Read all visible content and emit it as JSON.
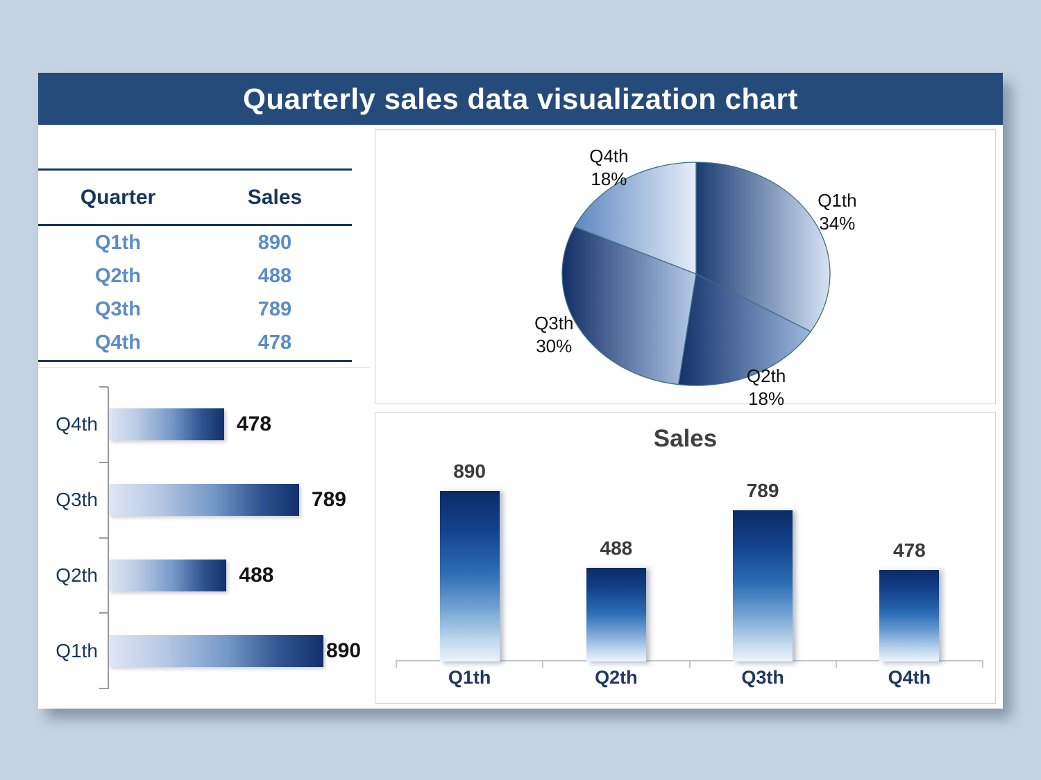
{
  "title": "Quarterly sales data visualization chart",
  "table": {
    "headers": [
      "Quarter",
      "Sales"
    ],
    "rows": [
      {
        "quarter": "Q1th",
        "sales": "890"
      },
      {
        "quarter": "Q2th",
        "sales": "488"
      },
      {
        "quarter": "Q3th",
        "sales": "789"
      },
      {
        "quarter": "Q4th",
        "sales": "478"
      }
    ]
  },
  "chart_data": [
    {
      "type": "pie",
      "name": "quarterly-share-pie",
      "categories": [
        "Q1th",
        "Q2th",
        "Q3th",
        "Q4th"
      ],
      "values": [
        890,
        488,
        789,
        478
      ],
      "percent_labels": [
        "34%",
        "18%",
        "30%",
        "18%"
      ],
      "start_angle_deg": 0,
      "direction": "clockwise",
      "legend": "none",
      "labels": "category and percent outside"
    },
    {
      "type": "bar-horizontal",
      "name": "sales-horizontal-bars",
      "categories_top_to_bottom": [
        "Q4th",
        "Q3th",
        "Q2th",
        "Q1th"
      ],
      "values_top_to_bottom": [
        478,
        789,
        488,
        890
      ],
      "data_labels": true,
      "xlim": [
        0,
        890
      ],
      "grid": false
    },
    {
      "type": "bar",
      "name": "sales-vertical-bars",
      "title": "Sales",
      "categories": [
        "Q1th",
        "Q2th",
        "Q3th",
        "Q4th"
      ],
      "values": [
        890,
        488,
        789,
        478
      ],
      "data_labels": true,
      "ylim": [
        0,
        890
      ],
      "grid": false
    }
  ],
  "colors": {
    "page_bg": "#c5d4e2",
    "panel_bg": "#ffffff",
    "titlebar_bg": "#254b7b",
    "titlebar_text": "#ffffff",
    "table_header_text": "#17365d",
    "table_row_text": "#5b8cc8",
    "table_rule": "#17365d",
    "hbar_gradient": [
      "#dde6f3",
      "#12306b"
    ],
    "vbar_gradient": [
      "#0b2b67",
      "#eef4fb"
    ],
    "pie_slice_gradients": [
      [
        "#1b3c73",
        "#d6e3f4"
      ],
      [
        "#14316b",
        "#9cb8de"
      ],
      [
        "#122e66",
        "#b5cbe9"
      ],
      [
        "#5d87c1",
        "#e6eef9"
      ]
    ],
    "pie_slice_stroke": "#3e6f80",
    "axis_gray_left_chart": "#9a9a9a",
    "axis_gray_right_chart": "#c4c4c4",
    "value_label_left_chart": "#141414",
    "value_label_right_chart": "#3a3a3a",
    "category_label_navy": "#1f3864",
    "sales_title_gray": "#404040",
    "pie_label_text": "#111111"
  }
}
